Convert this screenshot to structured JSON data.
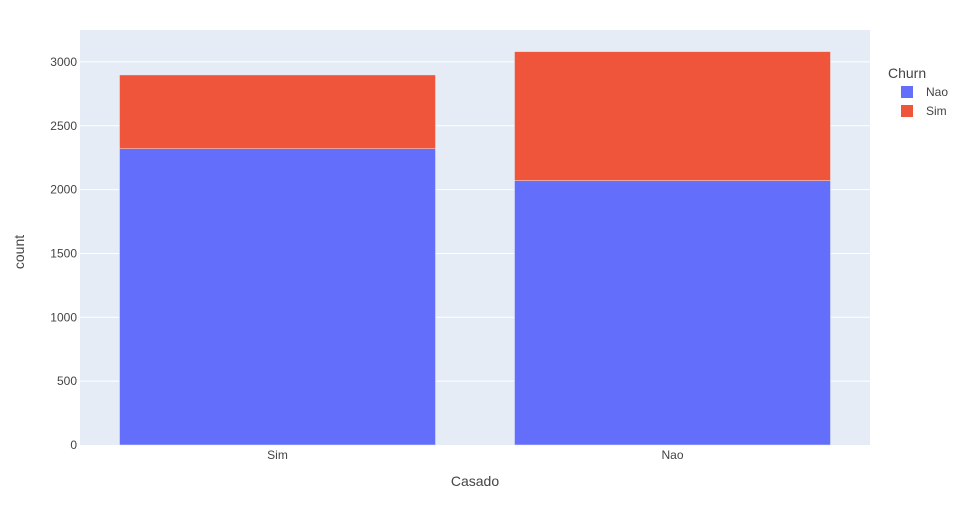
{
  "chart_data": {
    "type": "bar",
    "barmode": "stack",
    "title": "",
    "xlabel": "Casado",
    "ylabel": "count",
    "categories": [
      "Sim",
      "Nao"
    ],
    "series": [
      {
        "name": "Nao",
        "values": [
          2320,
          2070
        ],
        "color": "#636efa"
      },
      {
        "name": "Sim",
        "values": [
          578,
          1011
        ],
        "color": "#ef553b"
      }
    ],
    "ylim": [
      0,
      3250
    ],
    "yticks": [
      0,
      500,
      1000,
      1500,
      2000,
      2500,
      3000
    ],
    "grid": true,
    "legend": {
      "title": "Churn",
      "position": "top-right"
    },
    "plot_bgcolor": "#e5ecf6",
    "gridcolor": "#ffffff"
  }
}
